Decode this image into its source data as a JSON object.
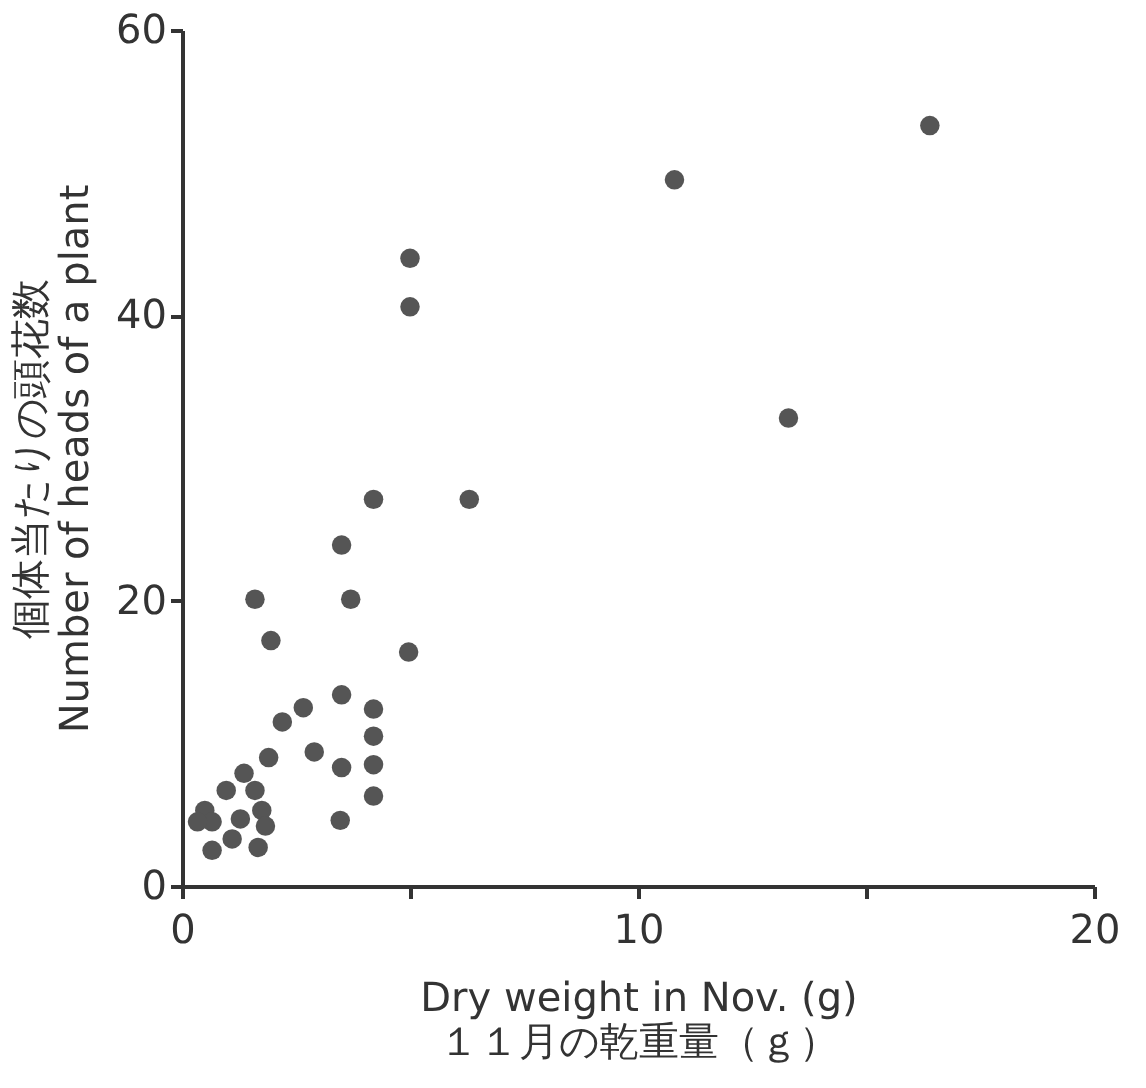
{
  "chart_data": {
    "type": "scatter",
    "xlabel": "Dry weight in Nov. (g)\n１１月の乾重量（ｇ）",
    "ylabel": "個体当たりの頭花数\nNumber of heads of a plant",
    "x": [
      16.4,
      10.8,
      5.0,
      5.0,
      13.3,
      4.2,
      6.3,
      3.5,
      1.6,
      3.7,
      1.95,
      4.97,
      2.66,
      3.5,
      4.2,
      4.2,
      4.2,
      4.2,
      2.9,
      3.5,
      3.47,
      2.2,
      1.9,
      1.36,
      0.97,
      1.6,
      0.5,
      0.66,
      1.28,
      1.75,
      1.67,
      0.66,
      1.1,
      0.34,
      1.83
    ],
    "values": [
      53.3,
      49.5,
      44.0,
      40.6,
      32.8,
      27.1,
      27.1,
      23.9,
      20.1,
      20.1,
      17.2,
      16.4,
      12.5,
      13.4,
      12.4,
      10.5,
      8.5,
      6.3,
      9.4,
      8.3,
      4.6,
      11.5,
      9.0,
      7.9,
      6.7,
      6.7,
      5.3,
      4.5,
      4.7,
      5.3,
      2.7,
      2.5,
      3.3,
      4.5,
      4.2
    ],
    "color": "#555555",
    "marker": "circle",
    "xlim": [
      0,
      20
    ],
    "ylim": [
      0,
      60
    ],
    "xticks": [
      0,
      {
        "value": 5,
        "label": null
      },
      10,
      {
        "value": 15,
        "label": null
      },
      20
    ],
    "yticks": [
      0,
      20,
      40,
      60
    ],
    "grid": false
  }
}
